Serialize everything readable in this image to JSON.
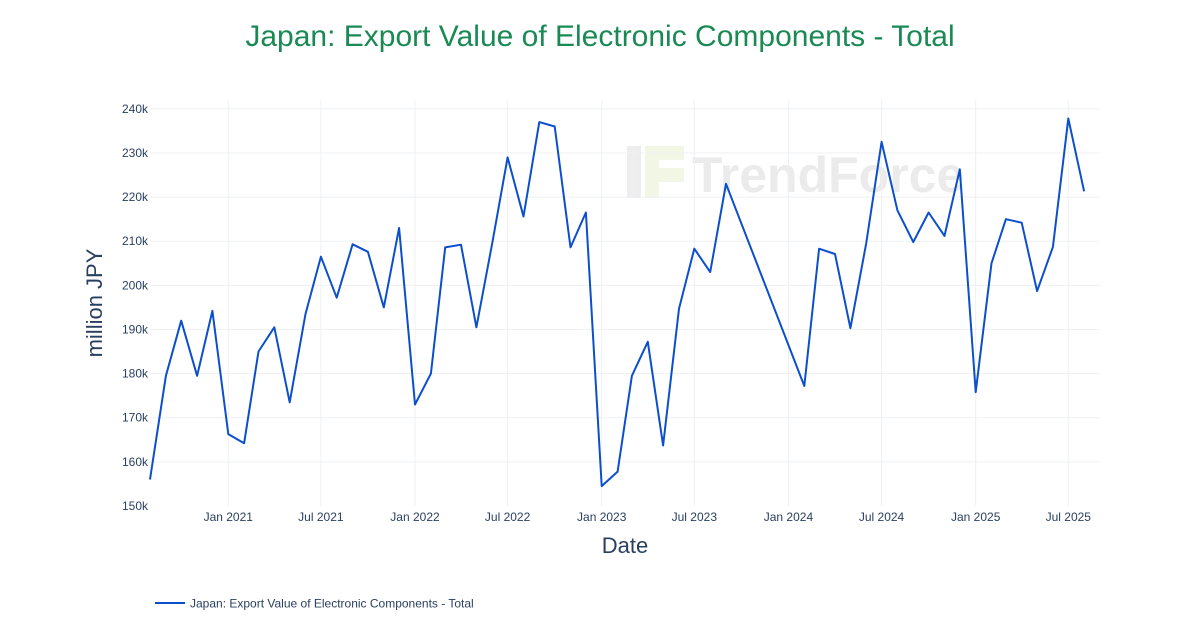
{
  "title": "Japan: Export Value of Electronic Components - Total",
  "watermark": "TrendForce",
  "colors": {
    "title": "#1a8a55",
    "series": "#0b4fcc",
    "grid": "#eef0f4",
    "text": "#2a3f5f"
  },
  "chart_data": {
    "type": "line",
    "title": "Japan: Export Value of Electronic Components - Total",
    "xlabel": "Date",
    "ylabel": "million JPY",
    "ylim": [
      150000,
      242000
    ],
    "yticks": [
      150000,
      160000,
      170000,
      180000,
      190000,
      200000,
      210000,
      220000,
      230000,
      240000
    ],
    "ytick_labels": [
      "150k",
      "160k",
      "170k",
      "180k",
      "190k",
      "200k",
      "210k",
      "220k",
      "230k",
      "240k"
    ],
    "xlim": [
      "2020-08-01",
      "2025-09-01"
    ],
    "xticks": [
      "2021-01-01",
      "2021-07-01",
      "2022-01-01",
      "2022-07-01",
      "2023-01-01",
      "2023-07-01",
      "2024-01-01",
      "2024-07-01",
      "2025-01-01",
      "2025-07-01"
    ],
    "xtick_labels": [
      "Jan 2021",
      "Jul 2021",
      "Jan 2022",
      "Jul 2022",
      "Jan 2023",
      "Jul 2023",
      "Jan 2024",
      "Jul 2024",
      "Jan 2025",
      "Jul 2025"
    ],
    "grid": true,
    "legend_position": "bottom-left",
    "series": [
      {
        "name": "Japan: Export Value of Electronic Components - Total",
        "x": [
          "2020-08-01",
          "2020-09-01",
          "2020-10-01",
          "2020-11-01",
          "2020-12-01",
          "2021-01-01",
          "2021-02-01",
          "2021-03-01",
          "2021-04-01",
          "2021-05-01",
          "2021-06-01",
          "2021-07-01",
          "2021-08-01",
          "2021-09-01",
          "2021-10-01",
          "2021-11-01",
          "2021-12-01",
          "2022-01-01",
          "2022-02-01",
          "2022-03-01",
          "2022-04-01",
          "2022-05-01",
          "2022-06-01",
          "2022-07-01",
          "2022-08-01",
          "2022-09-01",
          "2022-10-01",
          "2022-11-01",
          "2022-12-01",
          "2023-01-01",
          "2023-02-01",
          "2023-03-01",
          "2023-04-01",
          "2023-05-01",
          "2023-06-01",
          "2023-07-01",
          "2023-08-01",
          "2023-09-01",
          "2024-02-01",
          "2024-03-01",
          "2024-04-01",
          "2024-05-01",
          "2024-06-01",
          "2024-07-01",
          "2024-08-01",
          "2024-09-01",
          "2024-10-01",
          "2024-11-01",
          "2024-12-01",
          "2025-01-01",
          "2025-02-01",
          "2025-03-01",
          "2025-04-01",
          "2025-05-01",
          "2025-06-01",
          "2025-07-01",
          "2025-08-01"
        ],
        "y": [
          156000,
          179500,
          192000,
          179500,
          194200,
          166300,
          164200,
          185000,
          190500,
          173500,
          193500,
          206500,
          197200,
          209300,
          207600,
          195000,
          213000,
          173000,
          180000,
          208600,
          209200,
          190500,
          209500,
          229000,
          215600,
          237000,
          236000,
          208600,
          216500,
          154500,
          157800,
          179500,
          187200,
          163700,
          194700,
          208300,
          203000,
          223000,
          177200,
          208300,
          207100,
          190300,
          209500,
          232500,
          217000,
          209800,
          216500,
          211200,
          226300,
          175800,
          205000,
          215000,
          214200,
          198700,
          208700,
          237800,
          221300
        ]
      }
    ]
  }
}
